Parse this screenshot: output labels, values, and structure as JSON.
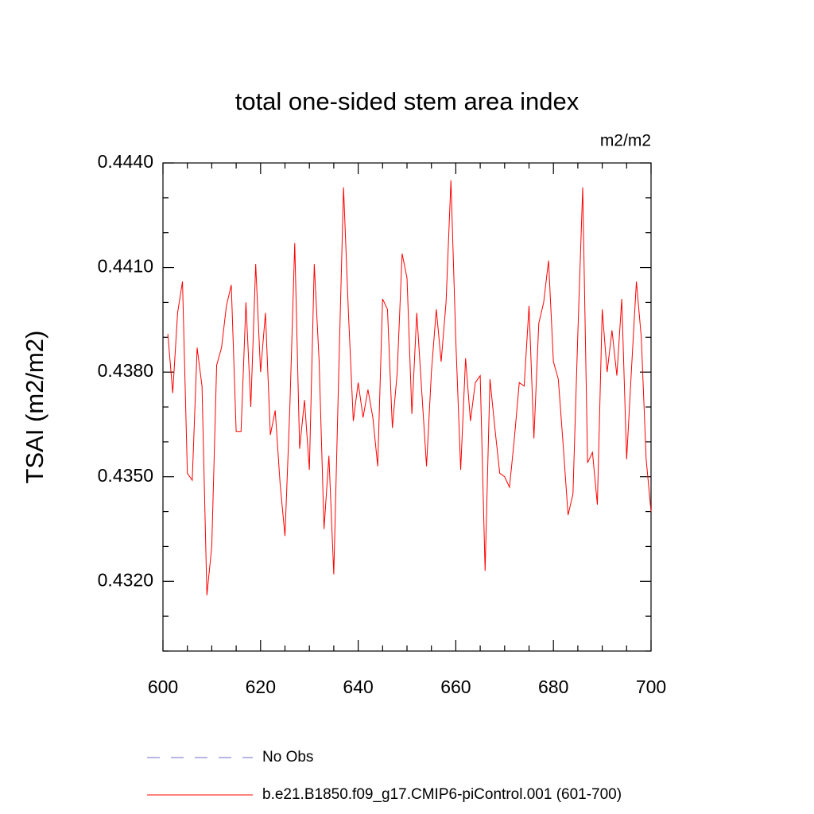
{
  "chart_data": {
    "type": "line",
    "title": "total one-sided stem area index",
    "units": "m2/m2",
    "ylabel": "TSAI  (m2/m2)",
    "x": [
      601,
      602,
      603,
      604,
      605,
      606,
      607,
      608,
      609,
      610,
      611,
      612,
      613,
      614,
      615,
      616,
      617,
      618,
      619,
      620,
      621,
      622,
      623,
      624,
      625,
      626,
      627,
      628,
      629,
      630,
      631,
      632,
      633,
      634,
      635,
      636,
      637,
      638,
      639,
      640,
      641,
      642,
      643,
      644,
      645,
      646,
      647,
      648,
      649,
      650,
      651,
      652,
      653,
      654,
      655,
      656,
      657,
      658,
      659,
      660,
      661,
      662,
      663,
      664,
      665,
      666,
      667,
      668,
      669,
      670,
      671,
      672,
      673,
      674,
      675,
      676,
      677,
      678,
      679,
      680,
      681,
      682,
      683,
      684,
      685,
      686,
      687,
      688,
      689,
      690,
      691,
      692,
      693,
      694,
      695,
      696,
      697,
      698,
      699,
      700
    ],
    "series": [
      {
        "name": "No Obs",
        "color": "#6c6cc8",
        "dashed": true
      },
      {
        "name": "b.e21.B1850.f09_g17.CMIP6-piControl.001 (601-700)",
        "color": "#ff0000",
        "values": [
          0.4391,
          0.4374,
          0.4397,
          0.4406,
          0.4351,
          0.4349,
          0.4387,
          0.4376,
          0.4316,
          0.433,
          0.4382,
          0.4387,
          0.4399,
          0.4405,
          0.4363,
          0.4363,
          0.44,
          0.437,
          0.4411,
          0.438,
          0.4397,
          0.4362,
          0.4369,
          0.4348,
          0.4333,
          0.437,
          0.4417,
          0.4358,
          0.4372,
          0.4352,
          0.4411,
          0.4383,
          0.4335,
          0.4356,
          0.4322,
          0.4379,
          0.4433,
          0.4397,
          0.4366,
          0.4377,
          0.4367,
          0.4375,
          0.4367,
          0.4353,
          0.4401,
          0.4398,
          0.4364,
          0.438,
          0.4414,
          0.4407,
          0.4368,
          0.4397,
          0.4375,
          0.4353,
          0.438,
          0.4398,
          0.4383,
          0.44,
          0.4435,
          0.4389,
          0.4352,
          0.4384,
          0.4366,
          0.4377,
          0.4379,
          0.4323,
          0.4378,
          0.4364,
          0.4351,
          0.435,
          0.4347,
          0.4361,
          0.4377,
          0.4376,
          0.4399,
          0.4361,
          0.4394,
          0.44,
          0.4412,
          0.4383,
          0.4378,
          0.4359,
          0.4339,
          0.4345,
          0.4391,
          0.4433,
          0.4354,
          0.4357,
          0.4342,
          0.4398,
          0.438,
          0.4392,
          0.4379,
          0.4401,
          0.4355,
          0.4381,
          0.4406,
          0.439,
          0.4355,
          0.434
        ]
      }
    ],
    "xlim": [
      600,
      700
    ],
    "xticks": [
      600,
      620,
      640,
      660,
      680,
      700
    ],
    "x_minor_per_interval": 3,
    "ylim": [
      0.43,
      0.444
    ],
    "yticks": [
      {
        "value": 0.432,
        "label": "0.4320"
      },
      {
        "value": 0.435,
        "label": "0.4350"
      },
      {
        "value": 0.438,
        "label": "0.4380"
      },
      {
        "value": 0.441,
        "label": "0.4410"
      },
      {
        "value": 0.444,
        "label": "0.4440"
      }
    ],
    "y_minor_per_interval": 2
  }
}
